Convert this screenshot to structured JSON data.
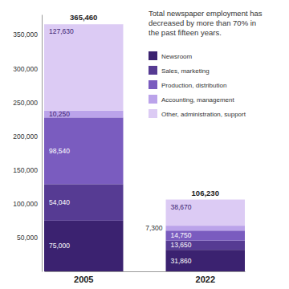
{
  "chart_data": {
    "type": "bar",
    "stacked": true,
    "annotation": "Total newspaper employment has decreased by more than 70% in the past fifteen years.",
    "categories": [
      "2005",
      "2022"
    ],
    "series": [
      {
        "name": "Newsroom",
        "color": "#3b2270",
        "values": [
          75000,
          31860
        ],
        "value_labels": [
          "75,000",
          "31,860"
        ]
      },
      {
        "name": "Sales, marketing",
        "color": "#563b93",
        "values": [
          54040,
          13650
        ],
        "value_labels": [
          "54,040",
          "13,650"
        ]
      },
      {
        "name": "Production, distribution",
        "color": "#7a5cbf",
        "values": [
          98540,
          14750
        ],
        "value_labels": [
          "98,540",
          "14,750"
        ]
      },
      {
        "name": "Accounting, management",
        "color": "#bba3ea",
        "values": [
          10250,
          7300
        ],
        "value_labels": [
          "10,250",
          "7,300"
        ]
      },
      {
        "name": "Other, administration, support",
        "color": "#dccbf4",
        "values": [
          127630,
          38670
        ],
        "value_labels": [
          "127,630",
          "38,670"
        ]
      }
    ],
    "totals": [
      365460,
      106230
    ],
    "total_labels": [
      "365,460",
      "106,230"
    ],
    "data_labels": true,
    "legend": "upper right",
    "grid": false,
    "ylim": [
      0,
      380000
    ],
    "yticks": [
      {
        "value": 50000,
        "label": "50,000"
      },
      {
        "value": 100000,
        "label": "100,000"
      },
      {
        "value": 150000,
        "label": "150,000"
      },
      {
        "value": 200000,
        "label": "200,000"
      },
      {
        "value": 250000,
        "label": "250,000"
      },
      {
        "value": 300000,
        "label": "300,000"
      },
      {
        "value": 350000,
        "label": "350,000"
      }
    ]
  }
}
